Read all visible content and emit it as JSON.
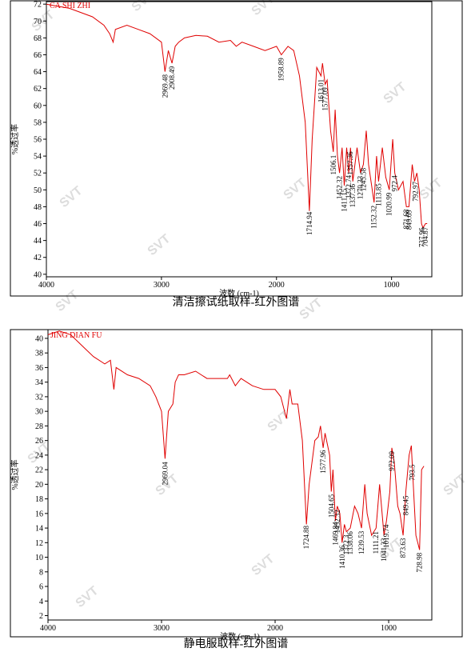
{
  "watermark": "SVT",
  "chart_data": [
    {
      "type": "line",
      "caption": "清洁擦试纸取样-红外图谱",
      "ylabel": "%透过率",
      "xlabel": "波数 (cm-1)",
      "xlim": [
        4000,
        650
      ],
      "ylim": [
        39.7,
        72.3
      ],
      "xticks": [
        4000,
        3000,
        2000,
        1000
      ],
      "yticks": [
        40,
        42,
        44,
        46,
        48,
        50,
        52,
        54,
        56,
        58,
        60,
        62,
        64,
        66,
        68,
        70,
        72
      ],
      "x": [
        4000,
        3800,
        3600,
        3500,
        3450,
        3420,
        3400,
        3300,
        3200,
        3100,
        3000,
        2969,
        2940,
        2908,
        2880,
        2850,
        2800,
        2700,
        2600,
        2500,
        2400,
        2350,
        2300,
        2200,
        2100,
        2000,
        1958,
        1900,
        1850,
        1800,
        1750,
        1714,
        1690,
        1650,
        1613,
        1600,
        1577,
        1560,
        1530,
        1506,
        1490,
        1470,
        1452,
        1430,
        1411,
        1390,
        1372,
        1357,
        1337,
        1300,
        1270,
        1245,
        1220,
        1200,
        1152,
        1130,
        1113,
        1080,
        1050,
        1020,
        990,
        972,
        940,
        900,
        871,
        849,
        820,
        800,
        780,
        760,
        740,
        727,
        704,
        690
      ],
      "series": [
        {
          "name": "CA SHI ZHI",
          "color": "#e00000",
          "values": [
            72,
            71.5,
            70.5,
            69.5,
            68.5,
            67.5,
            69,
            69.5,
            69,
            68.5,
            67.5,
            64,
            66.5,
            65,
            67,
            67.5,
            68,
            68.3,
            68.2,
            67.5,
            67.7,
            67,
            67.5,
            67,
            66.5,
            67,
            66,
            67,
            66.5,
            63.5,
            58,
            47.5,
            56,
            64.5,
            63.5,
            65,
            62.5,
            63,
            57,
            54.5,
            59.5,
            54,
            52,
            55,
            50.5,
            55,
            52,
            55,
            51,
            55,
            52,
            53,
            57,
            53,
            48.5,
            54,
            51,
            55,
            51.5,
            50,
            56,
            52,
            50,
            51,
            48,
            48,
            53,
            51,
            52,
            50,
            46,
            45.5,
            46,
            46
          ]
        }
      ],
      "peaks": [
        2969.48,
        2908.49,
        1958.89,
        1714.94,
        1613.01,
        1577.09,
        1506.1,
        1452.32,
        1411.15,
        1372.74,
        1357.36,
        1337.36,
        1270.33,
        1245.58,
        1152.32,
        1113.85,
        1020.99,
        972.4,
        871.68,
        849.69,
        792.97,
        737.96,
        704.87
      ]
    },
    {
      "type": "line",
      "caption": "静电服取样-红外图谱",
      "ylabel": "%透过率",
      "xlabel": "波数 (cm-1)",
      "xlim": [
        4000,
        620
      ],
      "ylim": [
        1.4,
        41.2
      ],
      "xticks": [
        4000,
        3000,
        2000,
        1000
      ],
      "yticks": [
        2,
        4,
        6,
        8,
        10,
        12,
        14,
        16,
        18,
        20,
        22,
        24,
        26,
        28,
        30,
        32,
        34,
        36,
        38,
        40
      ],
      "x": [
        4000,
        3900,
        3800,
        3700,
        3600,
        3500,
        3450,
        3420,
        3400,
        3300,
        3200,
        3100,
        3050,
        3000,
        2969,
        2940,
        2900,
        2880,
        2850,
        2800,
        2700,
        2600,
        2500,
        2420,
        2400,
        2350,
        2300,
        2200,
        2100,
        2000,
        1950,
        1900,
        1870,
        1850,
        1800,
        1760,
        1724,
        1700,
        1650,
        1620,
        1600,
        1577,
        1560,
        1520,
        1505,
        1490,
        1469,
        1452,
        1430,
        1410,
        1390,
        1372,
        1338,
        1300,
        1270,
        1239,
        1210,
        1190,
        1150,
        1111,
        1080,
        1041,
        1019,
        990,
        972,
        950,
        920,
        900,
        873,
        849,
        820,
        800,
        793,
        760,
        728,
        710,
        690
      ],
      "series": [
        {
          "name": "JING DIAN FU",
          "color": "#e00000",
          "values": [
            40.5,
            41,
            40.5,
            39,
            37.5,
            36.5,
            37,
            33,
            36,
            35,
            34.5,
            33.5,
            32,
            30,
            23.5,
            30,
            31,
            34,
            35,
            35,
            35.5,
            34.5,
            34.5,
            34.5,
            35,
            33.5,
            34.5,
            33.5,
            33,
            33,
            32,
            29,
            33,
            31,
            31,
            26,
            14.5,
            20,
            26,
            26.5,
            28,
            25,
            27,
            24,
            19,
            22,
            15,
            17,
            16,
            12,
            14.5,
            13.5,
            14,
            17,
            16,
            14,
            20,
            16,
            13,
            14,
            20,
            13,
            15,
            19,
            25,
            23,
            17,
            16,
            13,
            19,
            24,
            25.3,
            23,
            13,
            11,
            22,
            22.5
          ]
        }
      ],
      "peaks": [
        2969.04,
        1724.88,
        1577.96,
        1504.65,
        1469.84,
        1452.32,
        1410.36,
        1372.3,
        1338.06,
        1239.53,
        1111.21,
        1041.33,
        1019.74,
        972.09,
        873.63,
        849.45,
        793.5,
        728.98
      ]
    }
  ]
}
